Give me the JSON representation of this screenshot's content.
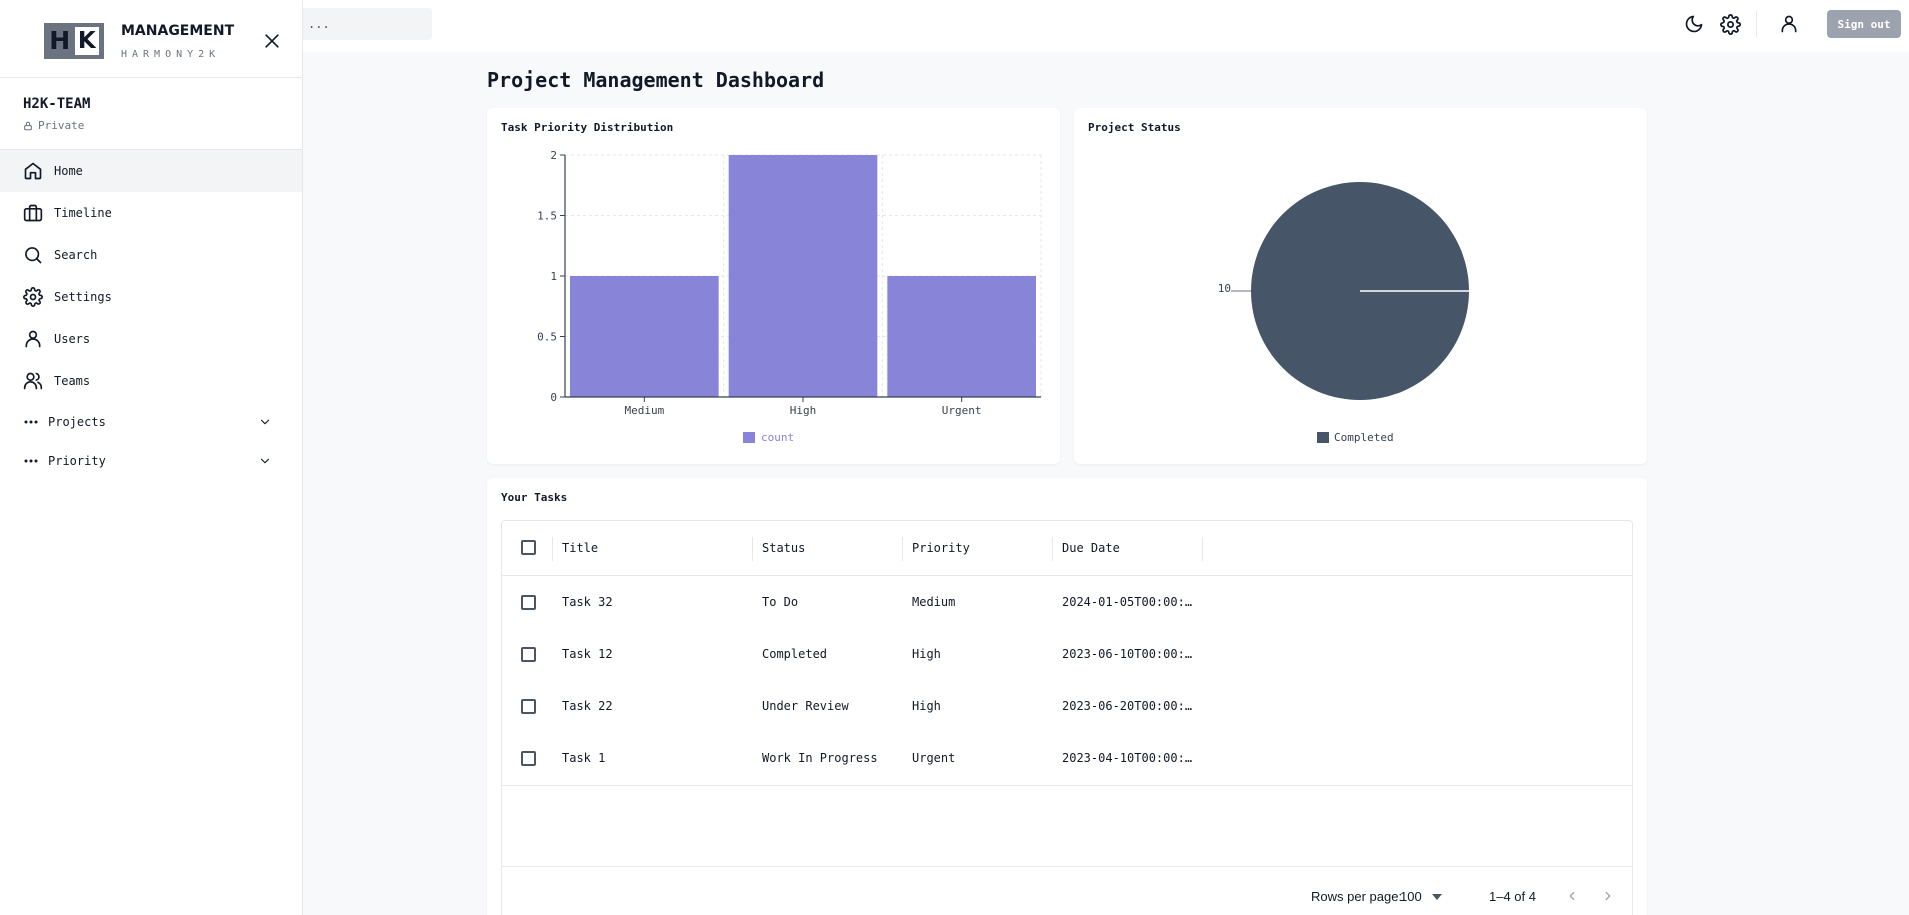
{
  "brand": {
    "logo_left": "H",
    "logo_right": "K",
    "title": "MANAGEMENT",
    "subtitle": "HARMONY2K"
  },
  "team": {
    "name": "H2K-TEAM",
    "privacy": "Private"
  },
  "sidebar": {
    "items": [
      {
        "label": "Home",
        "icon": "home-icon",
        "active": true
      },
      {
        "label": "Timeline",
        "icon": "briefcase-icon"
      },
      {
        "label": "Search",
        "icon": "search-icon"
      },
      {
        "label": "Settings",
        "icon": "gear-icon"
      },
      {
        "label": "Users",
        "icon": "user-icon"
      },
      {
        "label": "Teams",
        "icon": "users-icon"
      }
    ],
    "groups": [
      {
        "label": "Projects",
        "icon": "chevron-down-icon"
      },
      {
        "label": "Priority",
        "icon": "chevron-down-icon"
      }
    ]
  },
  "topbar": {
    "search_value": "...",
    "signout_label": "Sign out"
  },
  "page": {
    "title": "Project Management Dashboard"
  },
  "colors": {
    "bar": "#8884d8",
    "pie": "#475569",
    "signout": "#9ca3af"
  },
  "chart_data": [
    {
      "type": "bar",
      "title": "Task Priority Distribution",
      "categories": [
        "Medium",
        "High",
        "Urgent"
      ],
      "series": [
        {
          "name": "count",
          "values": [
            1,
            2,
            1
          ]
        }
      ],
      "yticks": [
        "0",
        "0.5",
        "1",
        "1.5",
        "2"
      ],
      "ylim": [
        0,
        2
      ],
      "grid": true,
      "legend": "bottom"
    },
    {
      "type": "pie",
      "title": "Project Status",
      "slices": [
        {
          "name": "Completed",
          "value": 10
        }
      ],
      "slice_label": "10",
      "legend": "bottom"
    }
  ],
  "tasks": {
    "title": "Your Tasks",
    "columns": [
      "Title",
      "Status",
      "Priority",
      "Due Date"
    ],
    "rows": [
      [
        "Task 32",
        "To Do",
        "Medium",
        "2024-01-05T00:00:…"
      ],
      [
        "Task 12",
        "Completed",
        "High",
        "2023-06-10T00:00:…"
      ],
      [
        "Task 22",
        "Under Review",
        "High",
        "2023-06-20T00:00:…"
      ],
      [
        "Task 1",
        "Work In Progress",
        "Urgent",
        "2023-04-10T00:00:…"
      ]
    ],
    "footer": {
      "rows_per_page_label": "Rows per page:",
      "rows_per_page_value": "100",
      "range": "1–4 of 4"
    }
  }
}
